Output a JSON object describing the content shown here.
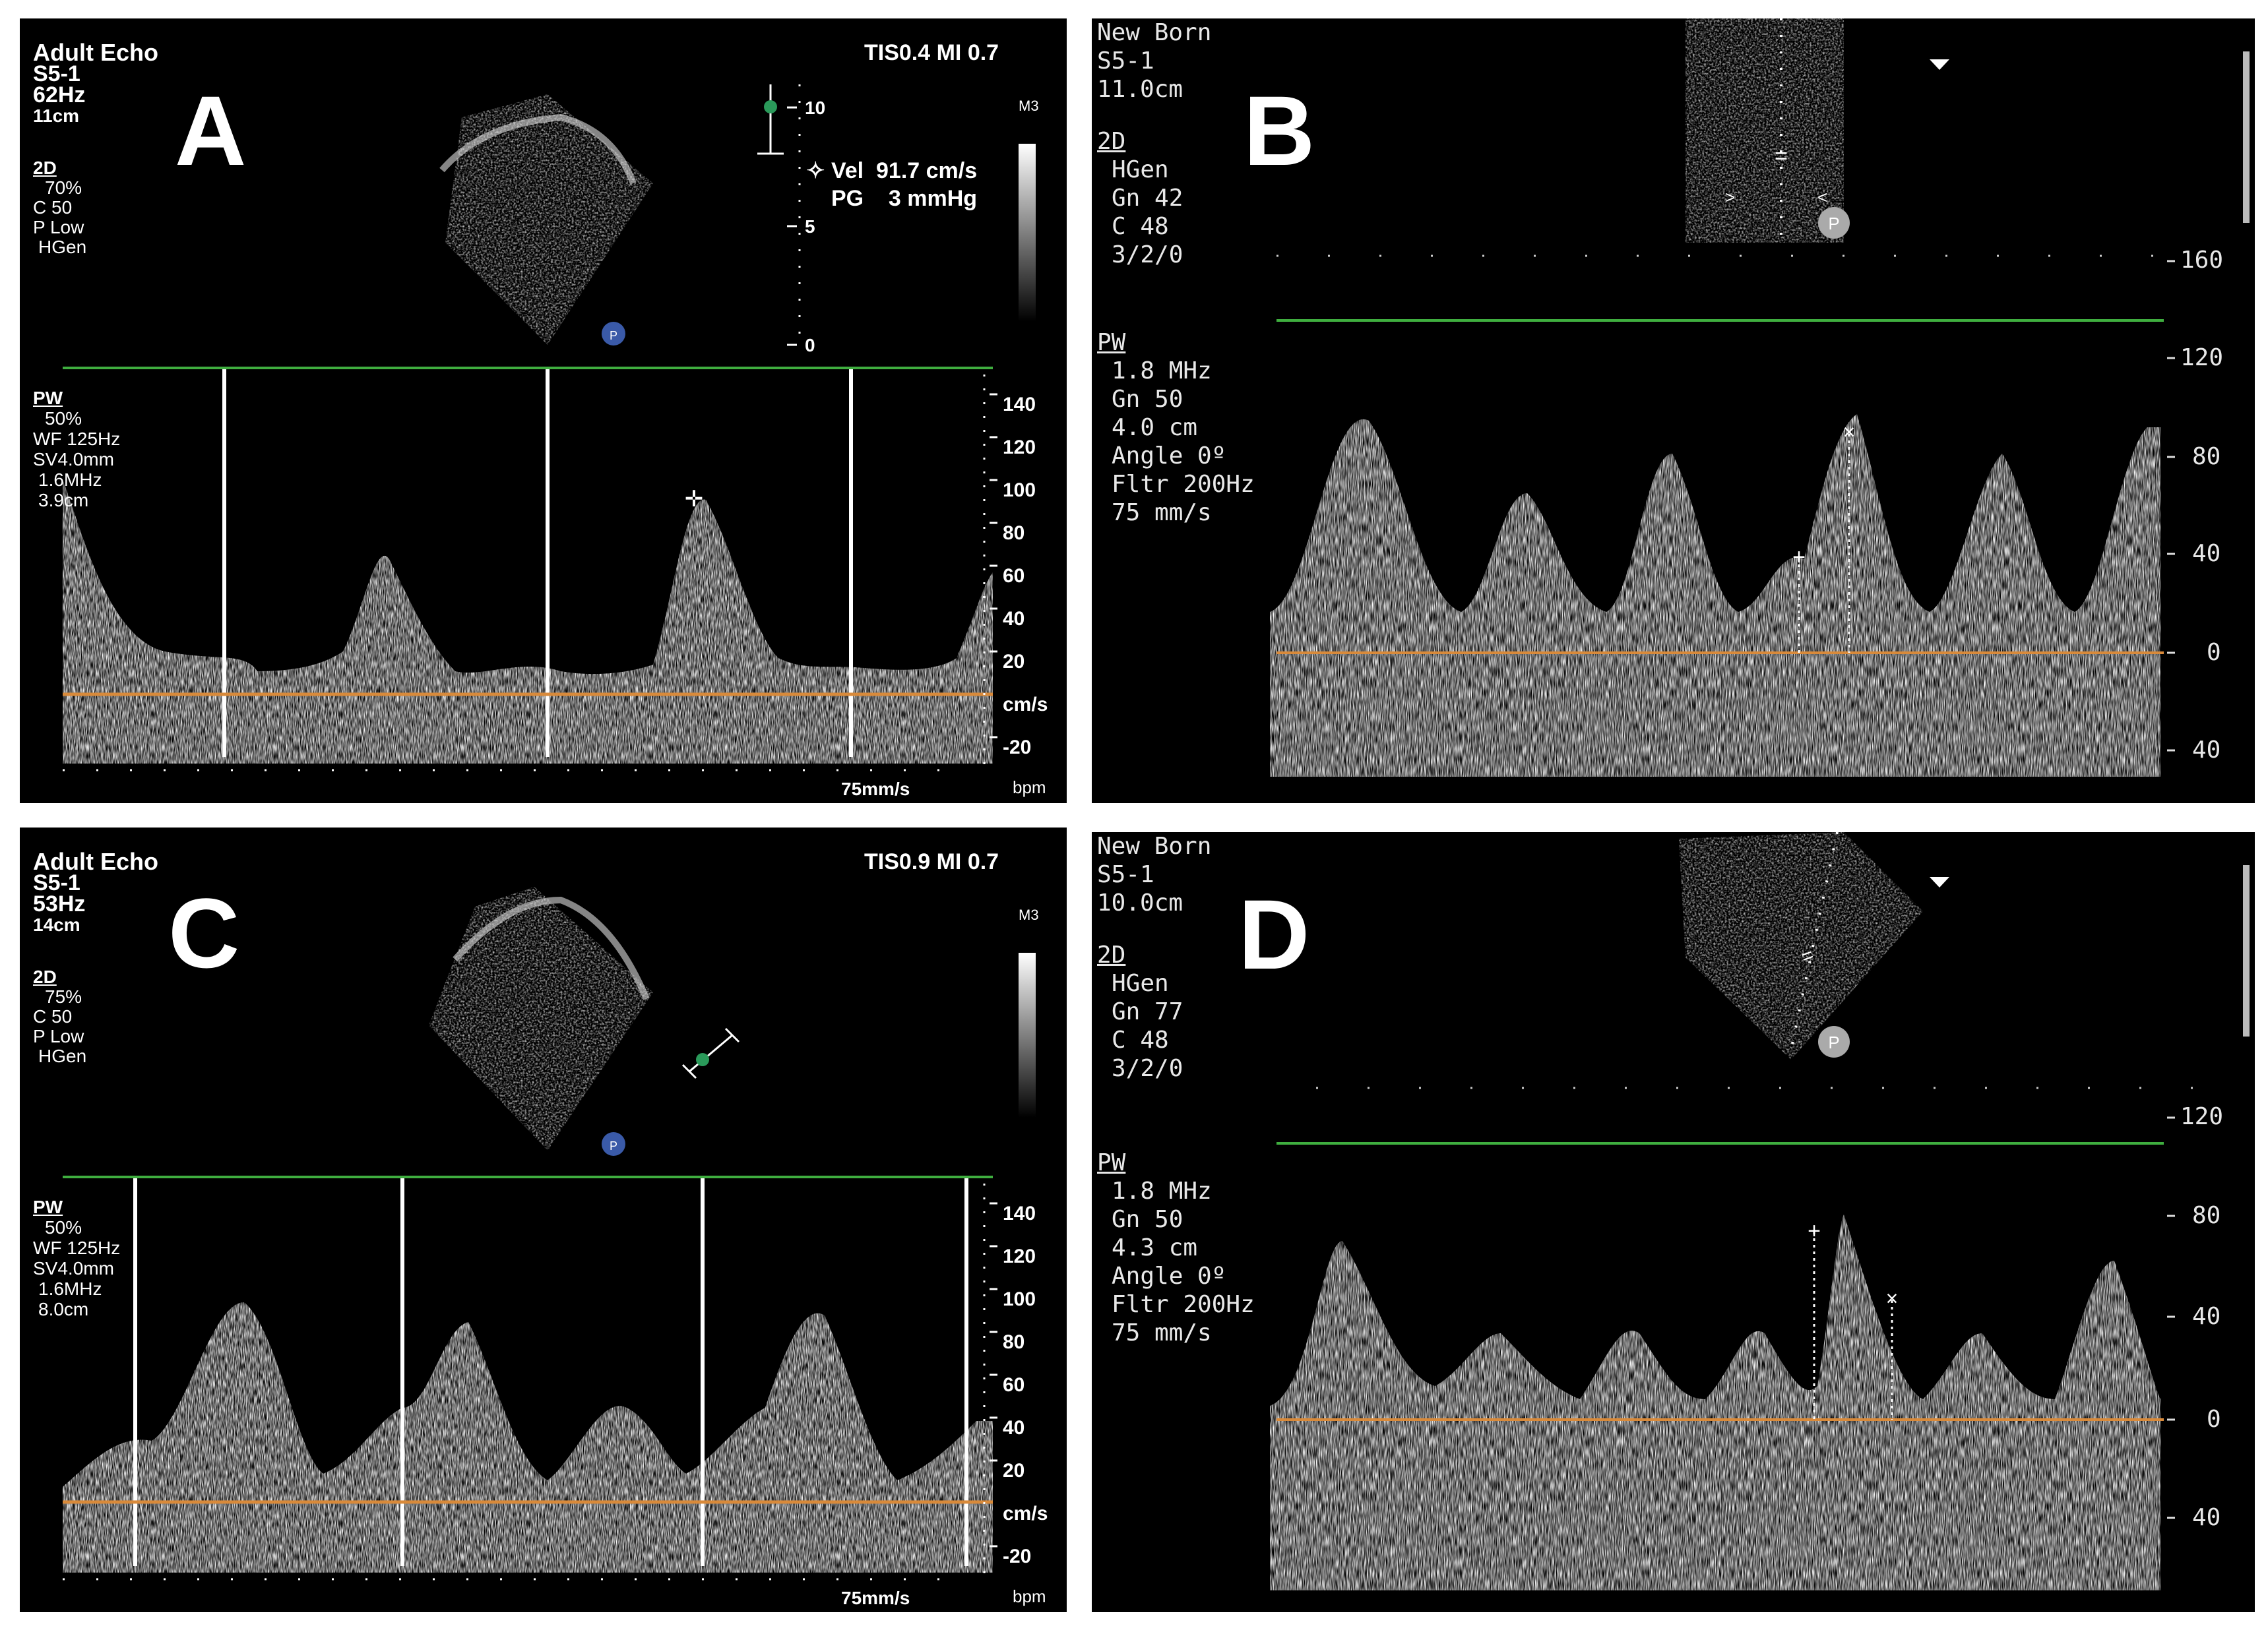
{
  "panels": {
    "A": {
      "letter": "A",
      "header": [
        "Adult Echo",
        "S5-1",
        "62Hz",
        "11cm"
      ],
      "mode2d": [
        "2D",
        "70%",
        "C 50",
        "P Low",
        "HGen"
      ],
      "tis": "TIS0.4   MI 0.7",
      "m3": "M3",
      "measure": {
        "vel_label": "Vel",
        "vel_value": "91.7 cm/s",
        "pg_label": "PG",
        "pg_value": "3 mmHg"
      },
      "small_scale": [
        "10",
        "5",
        "0"
      ],
      "pw": [
        "PW",
        "50%",
        "WF 125Hz",
        "SV4.0mm",
        "1.6MHz",
        "3.9cm"
      ],
      "scale": [
        "140",
        "120",
        "100",
        "80",
        "60",
        "40",
        "20",
        "cm/s",
        "-20"
      ],
      "speed": "75mm/s",
      "bpm": "bpm"
    },
    "B": {
      "letter": "B",
      "header": [
        "New Born",
        "S5-1",
        "11.0cm"
      ],
      "mode2d": [
        "2D",
        "HGen",
        "Gn 42",
        "C 48",
        "3/2/0"
      ],
      "pw": [
        "PW",
        "1.8 MHz",
        "Gn 50",
        "4.0 cm",
        "Angle 0º",
        "Fltr 200Hz",
        "75 mm/s"
      ],
      "scale": [
        "160",
        "120",
        "80",
        "40",
        "0",
        "40"
      ]
    },
    "C": {
      "letter": "C",
      "header": [
        "Adult Echo",
        "S5-1",
        "53Hz",
        "14cm"
      ],
      "mode2d": [
        "2D",
        "75%",
        "C 50",
        "P Low",
        "HGen"
      ],
      "tis": "TIS0.9   MI 0.7",
      "m3": "M3",
      "pw": [
        "PW",
        "50%",
        "WF 125Hz",
        "SV4.0mm",
        "1.6MHz",
        "8.0cm"
      ],
      "scale": [
        "140",
        "120",
        "100",
        "80",
        "60",
        "40",
        "20",
        "cm/s",
        "-20"
      ],
      "speed": "75mm/s",
      "bpm": "bpm"
    },
    "D": {
      "letter": "D",
      "header": [
        "New Born",
        "S5-1",
        "10.0cm"
      ],
      "mode2d": [
        "2D",
        "HGen",
        "Gn 77",
        "C 48",
        "3/2/0"
      ],
      "pw": [
        "PW",
        "1.8 MHz",
        "Gn 50",
        "4.3 cm",
        "Angle 0º",
        "Fltr 200Hz",
        "75 mm/s"
      ],
      "scale": [
        "120",
        "80",
        "40",
        "0",
        "40"
      ]
    }
  },
  "colors": {
    "baseline": "#d98a3a",
    "sample_line": "#3fae3f",
    "marker": "#2a9a5a",
    "probe_dot": "#3a5aa8"
  }
}
